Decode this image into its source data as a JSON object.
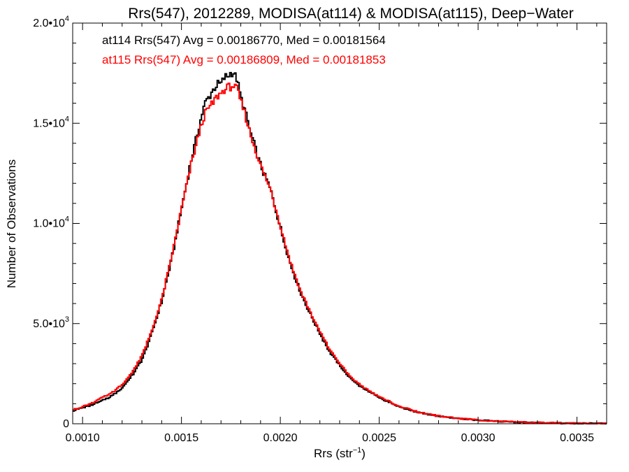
{
  "chart_data": {
    "type": "line",
    "step": true,
    "title": "Rrs(547), 2012289, MODISA(at114) & MODISA(at115), Deep−Water",
    "xlabel": "Rrs (str",
    "xlabel_sup": "−1",
    "xlabel_end": ")",
    "ylabel": "Number of Observations",
    "xlim": [
      0.00095,
      0.00365
    ],
    "ylim": [
      0,
      20000
    ],
    "grid": false,
    "x_ticks": [
      {
        "value": 0.001,
        "label": "0.0010"
      },
      {
        "value": 0.0015,
        "label": "0.0015"
      },
      {
        "value": 0.002,
        "label": "0.0020"
      },
      {
        "value": 0.0025,
        "label": "0.0025"
      },
      {
        "value": 0.003,
        "label": "0.0030"
      },
      {
        "value": 0.0035,
        "label": "0.0035"
      }
    ],
    "y_ticks": [
      {
        "value": 0,
        "mant": "0",
        "exp": ""
      },
      {
        "value": 5000,
        "mant": "5.0•10",
        "exp": "3"
      },
      {
        "value": 10000,
        "mant": "1.0•10",
        "exp": "4"
      },
      {
        "value": 15000,
        "mant": "1.5•10",
        "exp": "4"
      },
      {
        "value": 20000,
        "mant": "2.0•10",
        "exp": "4"
      }
    ],
    "annotations": [
      {
        "text": "at114 Rrs(547) Avg = 0.00186770, Med = 0.00181564",
        "color": "#000000"
      },
      {
        "text": "at115 Rrs(547) Avg = 0.00186809, Med = 0.00181853",
        "color": "#ff0000"
      }
    ],
    "series": [
      {
        "color": "#000000",
        "x": [
          0.00095,
          0.001,
          0.00105,
          0.0011,
          0.00115,
          0.0012,
          0.00125,
          0.0013,
          0.00135,
          0.0014,
          0.00145,
          0.0015,
          0.00155,
          0.0016,
          0.00162,
          0.00165,
          0.00168,
          0.0017,
          0.00172,
          0.00174,
          0.00176,
          0.00178,
          0.0018,
          0.00182,
          0.00185,
          0.0019,
          0.00195,
          0.002,
          0.00205,
          0.0021,
          0.00215,
          0.0022,
          0.00225,
          0.0023,
          0.00235,
          0.0024,
          0.0025,
          0.0026,
          0.0027,
          0.0028,
          0.0029,
          0.003,
          0.0031,
          0.0032,
          0.0033,
          0.0034,
          0.0035,
          0.00365
        ],
        "y": [
          650,
          800,
          950,
          1150,
          1400,
          1800,
          2400,
          3200,
          4500,
          6100,
          8200,
          10700,
          13200,
          15300,
          16000,
          16500,
          16900,
          17000,
          17300,
          17400,
          17600,
          17200,
          16300,
          15700,
          14500,
          12900,
          11700,
          9800,
          8000,
          6600,
          5500,
          4500,
          3600,
          2900,
          2300,
          1900,
          1300,
          850,
          550,
          380,
          260,
          180,
          120,
          80,
          50,
          30,
          20,
          10
        ]
      },
      {
        "color": "#ff0000",
        "x": [
          0.00095,
          0.001,
          0.00105,
          0.0011,
          0.00115,
          0.0012,
          0.00125,
          0.0013,
          0.00135,
          0.0014,
          0.00145,
          0.0015,
          0.00155,
          0.0016,
          0.00162,
          0.00165,
          0.00168,
          0.0017,
          0.00172,
          0.00174,
          0.00176,
          0.00178,
          0.0018,
          0.00182,
          0.00185,
          0.0019,
          0.00195,
          0.002,
          0.00205,
          0.0021,
          0.00215,
          0.0022,
          0.00225,
          0.0023,
          0.00235,
          0.0024,
          0.0025,
          0.0026,
          0.0027,
          0.0028,
          0.0029,
          0.003,
          0.0031,
          0.0032,
          0.0033,
          0.0034,
          0.0035,
          0.00365
        ],
        "y": [
          700,
          850,
          1050,
          1300,
          1550,
          1950,
          2550,
          3400,
          4600,
          6200,
          8300,
          10700,
          13000,
          14900,
          15500,
          15900,
          16300,
          16500,
          16700,
          16800,
          16900,
          16700,
          16100,
          15500,
          14400,
          12900,
          11700,
          9900,
          8100,
          6700,
          5600,
          4600,
          3700,
          3000,
          2400,
          1950,
          1350,
          880,
          570,
          390,
          270,
          190,
          125,
          85,
          55,
          35,
          22,
          12
        ]
      }
    ]
  }
}
